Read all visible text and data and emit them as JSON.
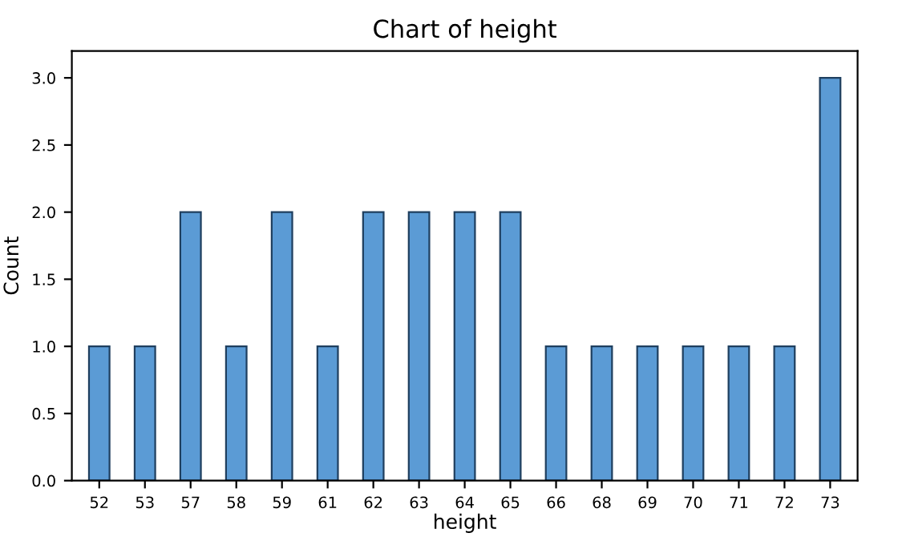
{
  "chart_data": {
    "type": "bar",
    "title": "Chart of height",
    "xlabel": "height",
    "ylabel": "Count",
    "categories": [
      "52",
      "53",
      "57",
      "58",
      "59",
      "61",
      "62",
      "63",
      "64",
      "65",
      "66",
      "68",
      "69",
      "70",
      "71",
      "72",
      "73"
    ],
    "values": [
      1,
      1,
      2,
      1,
      2,
      1,
      2,
      2,
      2,
      2,
      1,
      1,
      1,
      1,
      1,
      1,
      3
    ],
    "color": "#5b9bd5",
    "ylim": [
      0,
      3.2
    ],
    "yticks": [
      {
        "value": 0,
        "label": "0.0"
      },
      {
        "value": 0.5,
        "label": "0.5"
      },
      {
        "value": 1,
        "label": "1.0"
      },
      {
        "value": 1.5,
        "label": "1.5"
      },
      {
        "value": 2,
        "label": "2.0"
      },
      {
        "value": 2.5,
        "label": "2.5"
      },
      {
        "value": 3,
        "label": "3.0"
      }
    ],
    "grid": false
  }
}
